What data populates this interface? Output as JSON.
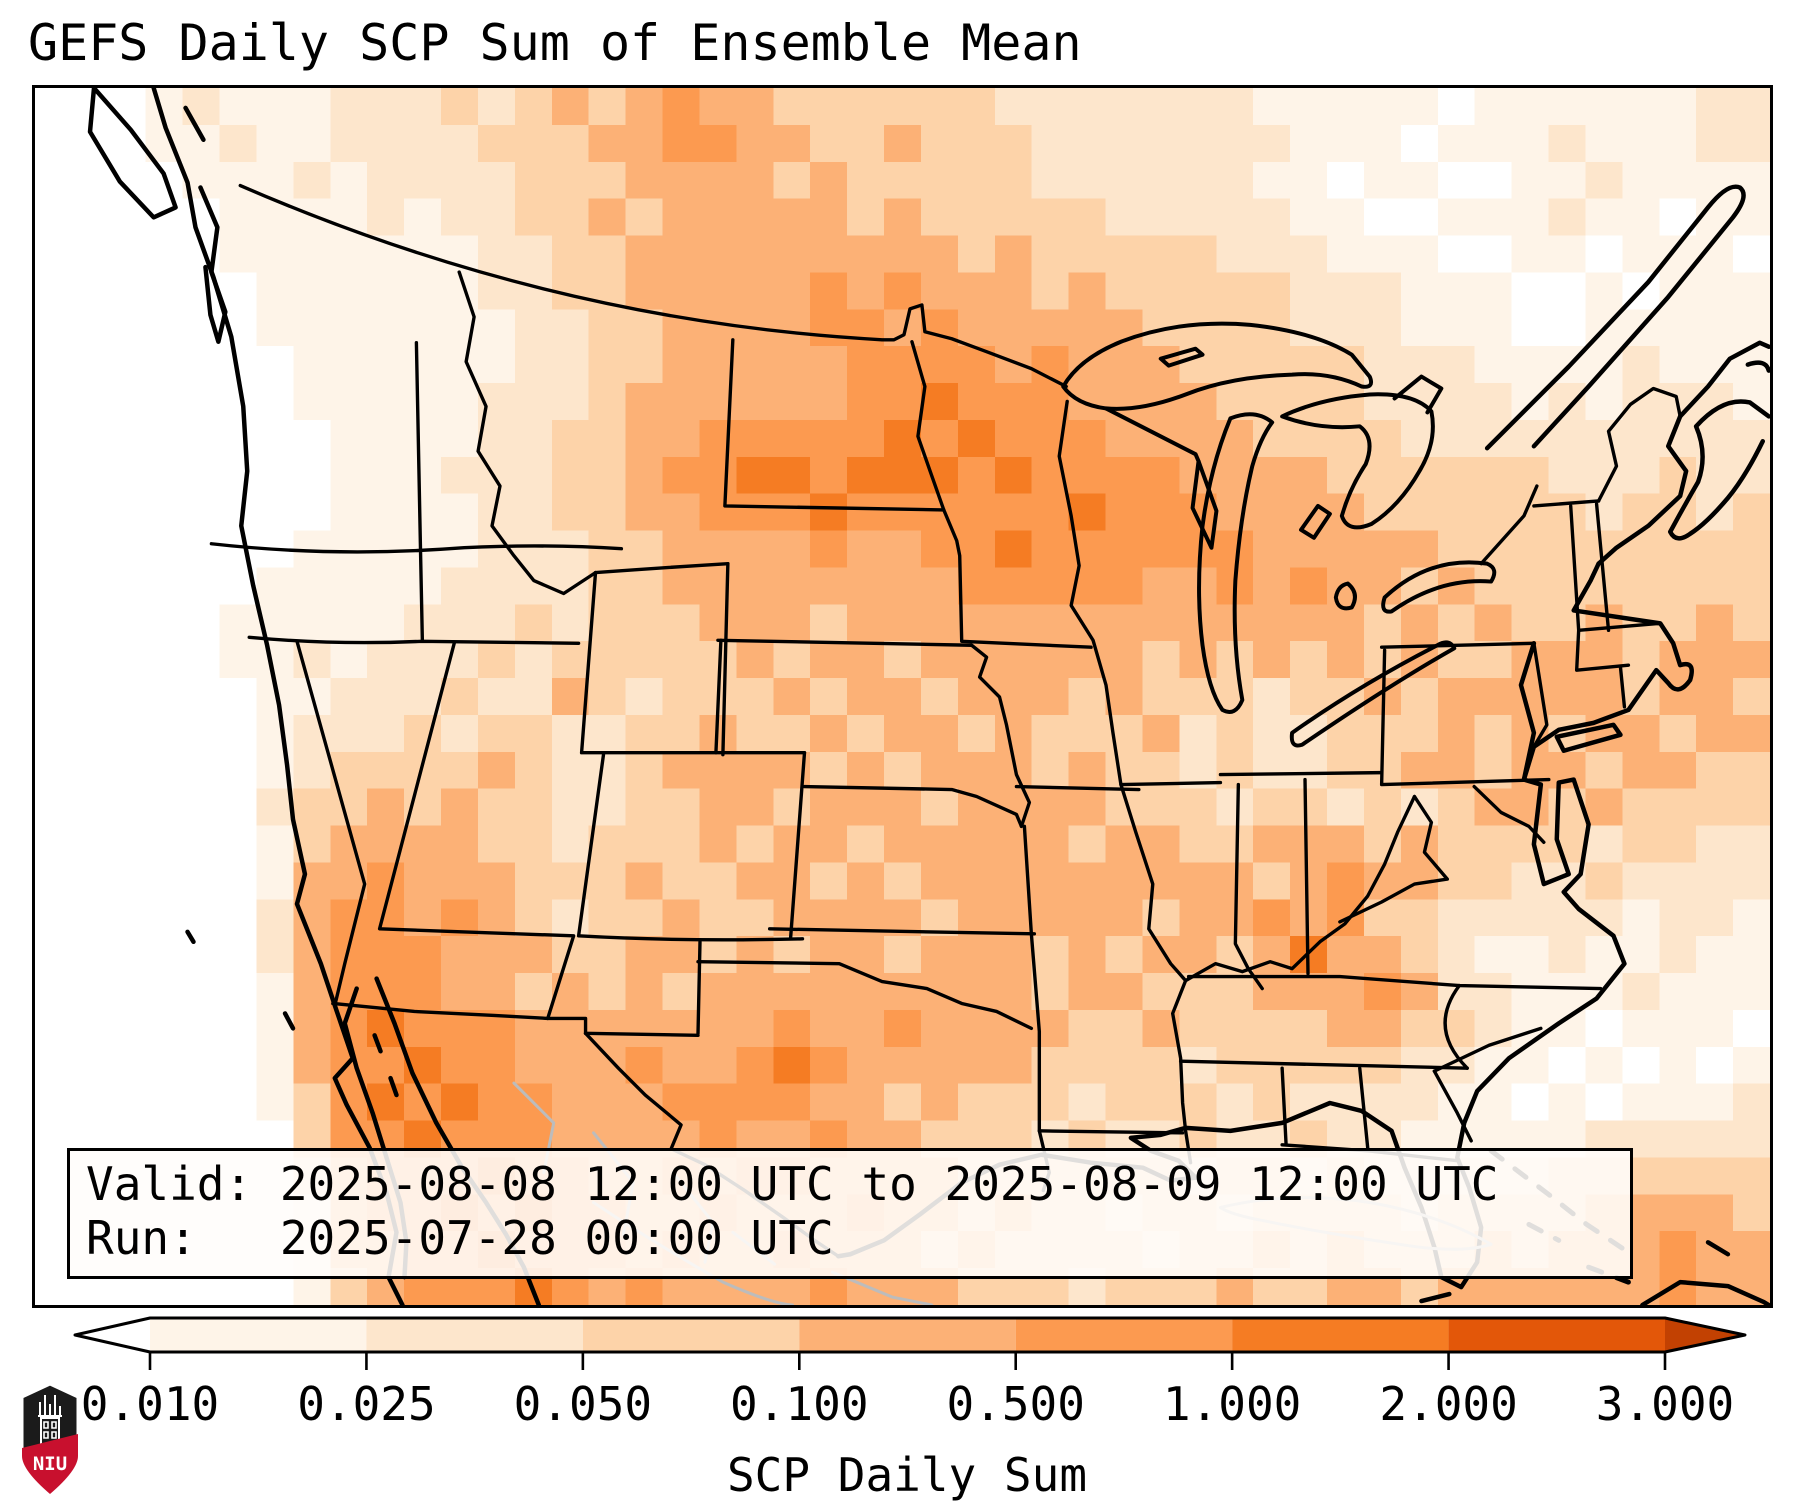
{
  "title": "GEFS Daily SCP Sum of Ensemble Mean",
  "info_box": {
    "line1": "Valid: 2025-08-08 12:00 UTC to 2025-08-09 12:00 UTC",
    "line2": "Run:   2025-07-28 00:00 UTC"
  },
  "logo": {
    "text": "NIU",
    "shield_color": "#1b1b1b",
    "band_color": "#c8102e"
  },
  "chart_data": {
    "type": "heatmap",
    "title": "GEFS Daily SCP Sum of Ensemble Mean",
    "colorbar": {
      "label": "SCP Daily Sum",
      "tick_labels": [
        "0.010",
        "0.025",
        "0.050",
        "0.100",
        "0.500",
        "1.000",
        "2.000",
        "3.000"
      ],
      "levels": [
        0.01,
        0.025,
        0.05,
        0.1,
        0.5,
        1.0,
        2.0,
        3.0
      ],
      "segment_colors": [
        "#fef4e8",
        "#fde6cc",
        "#fdd3a9",
        "#fcb176",
        "#fc9a50",
        "#f57c23",
        "#e35709"
      ],
      "under_color": "#ffffff",
      "over_color": "#c24102",
      "extend": "both",
      "orientation": "horizontal"
    },
    "palette": [
      "#ffffff",
      "#fef4e8",
      "#fde6cc",
      "#fdd3a9",
      "#fcb176",
      "#fc9a50",
      "#f57c23",
      "#e35709",
      "#c24102"
    ],
    "grid": {
      "cols": 47,
      "rows": 33,
      "legend": "each digit = palette index (0 = < 0.010, 1..7 = colorbar segments, 8 = > 3.000)",
      "cell_values_by_row": [
        "00012111222323434544333333222222211111011111122",
        "00011211222233344554433433322222221110111211122",
        "00001112122223334444343333322222211011001121111",
        "00000111121223343444443433333222221100111211011",
        "00000111111122334444444443433333222111001101110",
        "00000011111122334444454544434333332221110010111",
        "00000011111112233444455454444433332221110011111",
        "00000001111112233444445555454443333322211112111",
        "00000001111122234444445565554444333322221212221",
        "00000000111122334455555656555444433332222222222",
        "00000000111222334556656665655554444333333222322",
        "00000000111122334455565555556555444433333323323",
        "00000001111122233444454455655555544444333333333",
        "00000011111222233444444445555544545443433333333",
        "00000111112223233344434444444444444434343343343",
        "00000112122232333334344344444434343434334443444",
        "00000011222322432333434434443433323343444443443",
        "00000012223233223343343443433342322333434344344",
        "00000012333343223444434344434332322334434434433",
        "00000023343433223344344434444333233232344343333",
        "00000013444433233343443444443443344434333323322",
        "00000014454443334334434344444444434544332232222",
        "00000024554543233433444434444434454533222221221",
        "00000024555444334434344344434344346443211211211",
        "00000014555443434344444444434433344454221112111",
        "00000014565554444444544544443343333443321101110",
        "00000014556554445445654444433332333332211010101",
        "00000013565655444555544343332333232222110101112",
        "00000003556555444454454433323223223221111122222",
        "00000002455565544545544443333332332322222333333",
        "00000001455656554454445443433233233332333344443",
        "00000001445565554544544434333323343433343444544",
        "00000001345556545444454443332333433443444444544"
      ]
    }
  }
}
